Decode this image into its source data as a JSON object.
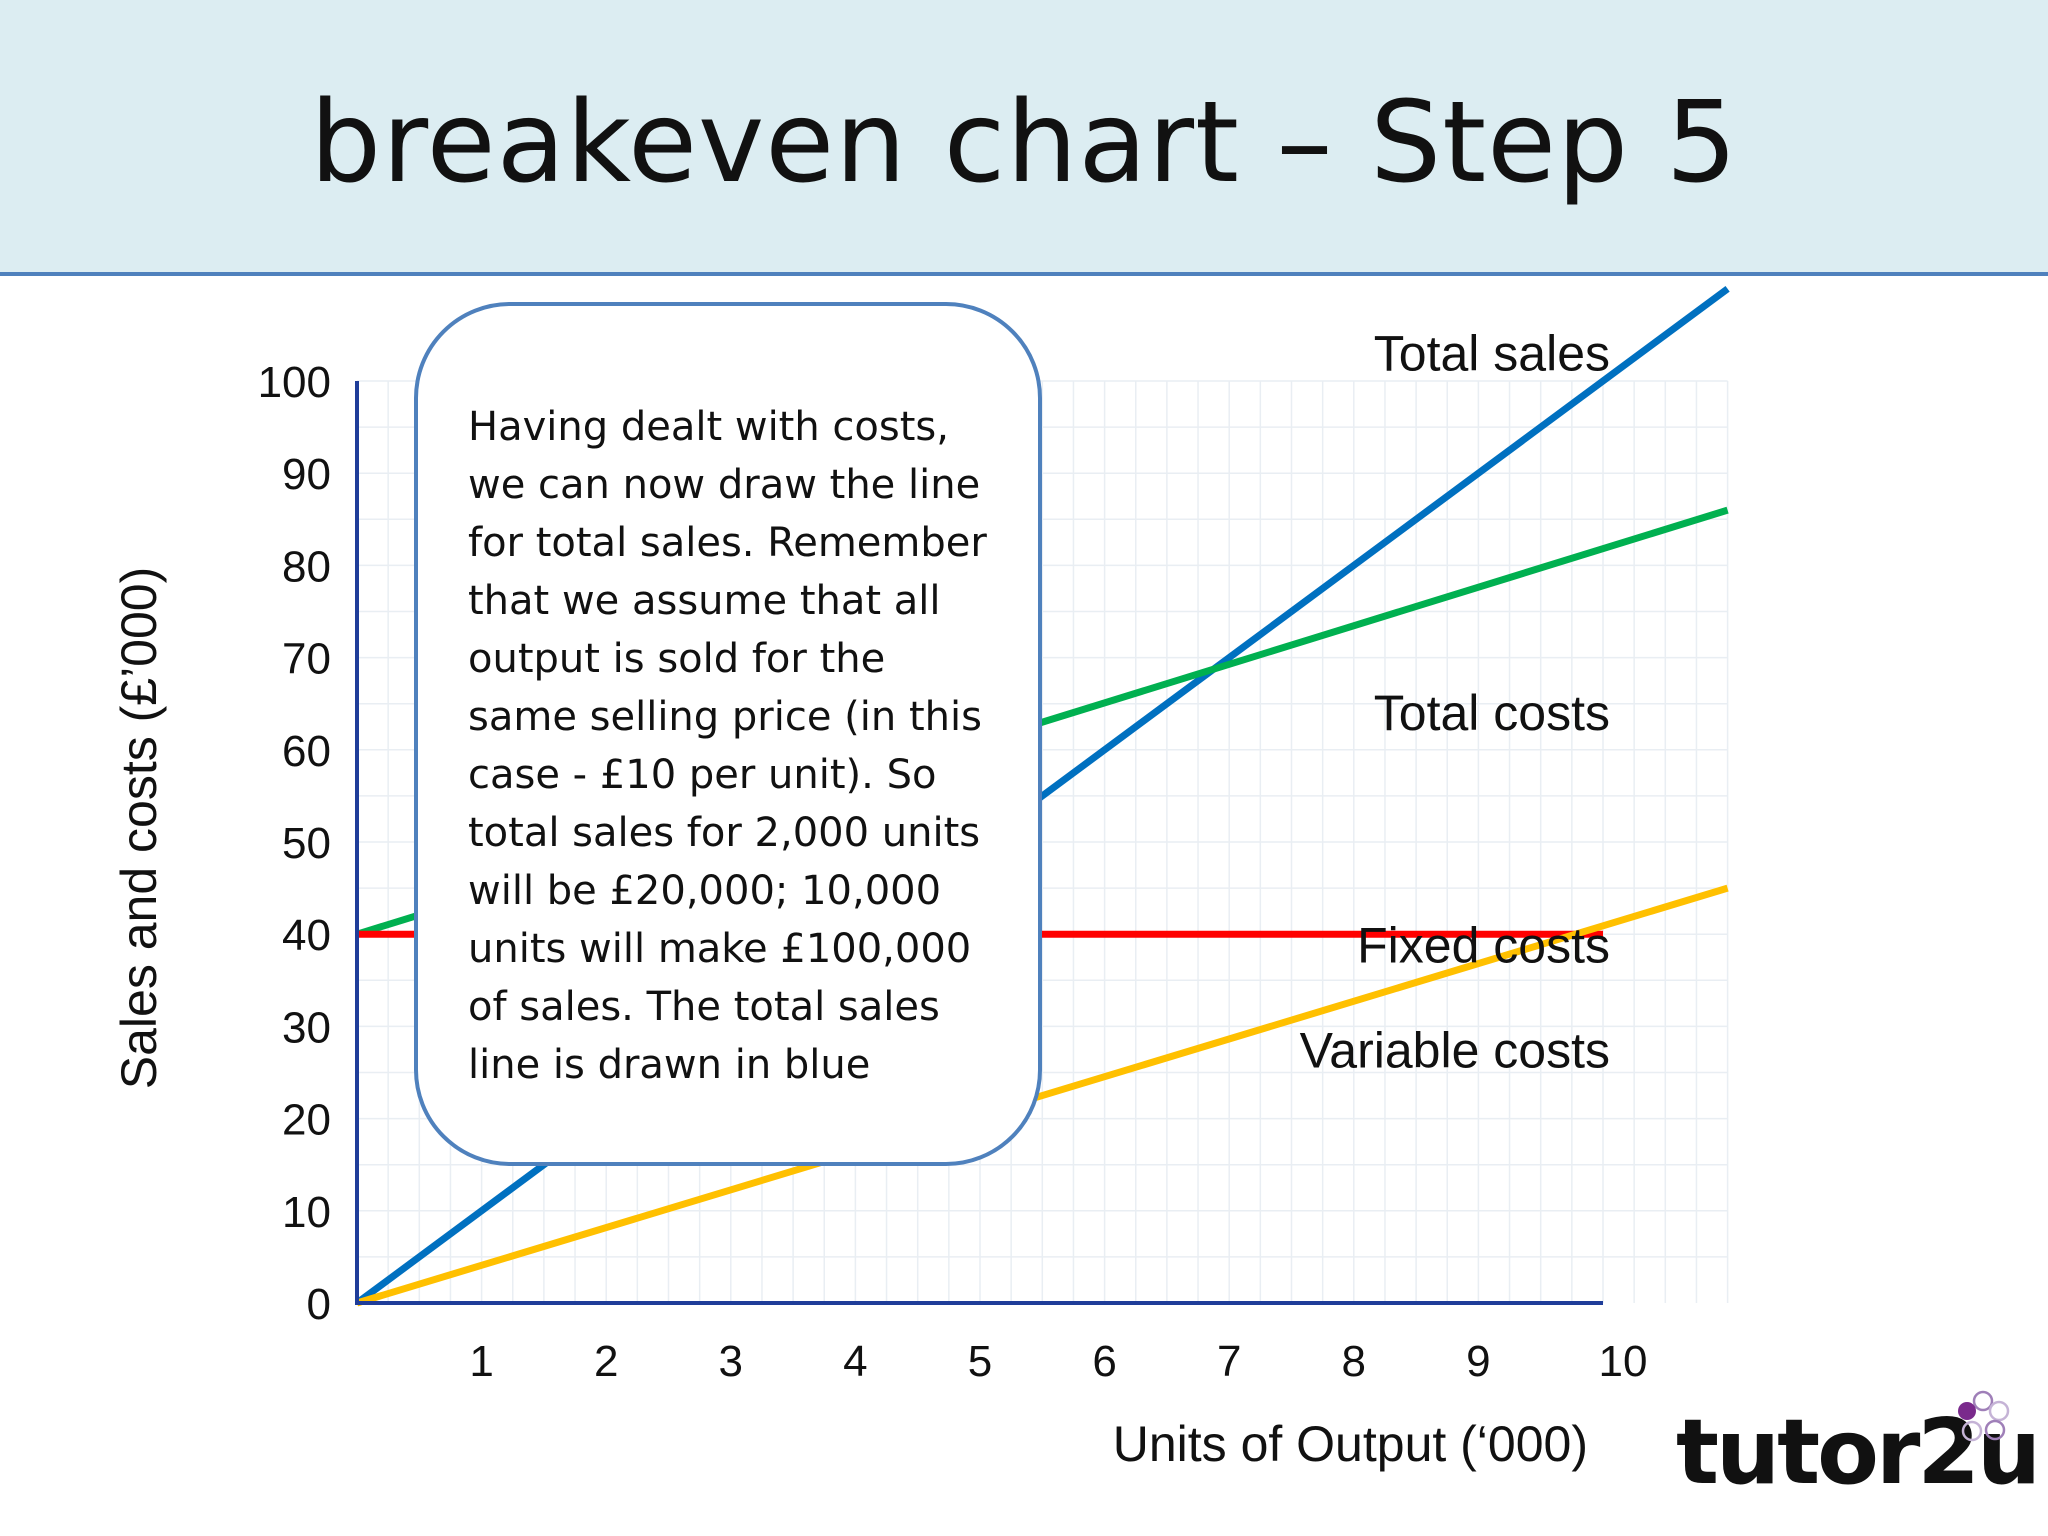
{
  "page": {
    "title": "breakeven chart – Step 5",
    "callout_text": "Having dealt with costs, we can now draw the line for total sales.  Remember that we assume that all output is sold for the same selling price (in this case - £10 per unit).  So total sales for 2,000 units will be £20,000; 10,000 units will make £100,000 of sales.  The total sales line is drawn in blue",
    "logo_text": "tutor2u"
  },
  "chart_data": {
    "type": "line",
    "xlabel": "Units of Output (‘000)",
    "ylabel": "Sales and costs (£’000)",
    "xlim": [
      0,
      10
    ],
    "ylim": [
      0,
      100
    ],
    "x_ticks": [
      "1",
      "2",
      "3",
      "4",
      "5",
      "6",
      "7",
      "8",
      "9",
      "10"
    ],
    "y_ticks": [
      "0",
      "10",
      "20",
      "30",
      "40",
      "50",
      "60",
      "70",
      "80",
      "90",
      "100"
    ],
    "grid": true,
    "series": [
      {
        "name": "Total sales",
        "color": "#0070c0",
        "x": [
          0,
          11
        ],
        "y": [
          0,
          110
        ]
      },
      {
        "name": "Total costs",
        "color": "#00b050",
        "x": [
          0,
          11
        ],
        "y": [
          40,
          86
        ]
      },
      {
        "name": "Fixed costs",
        "color": "#ff0000",
        "x": [
          0,
          10
        ],
        "y": [
          40,
          40
        ]
      },
      {
        "name": "Variable costs",
        "color": "#ffc000",
        "x": [
          0,
          11
        ],
        "y": [
          0,
          45
        ]
      }
    ]
  }
}
